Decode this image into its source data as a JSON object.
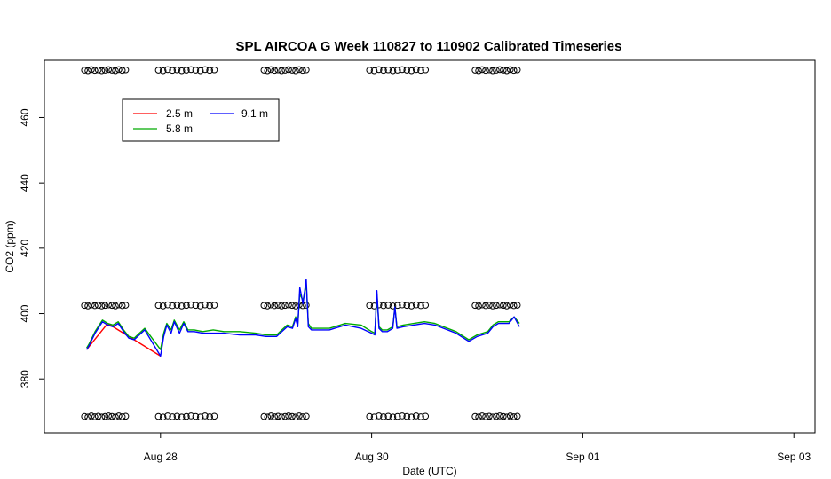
{
  "chart_data": {
    "type": "line",
    "title": "SPL AIRCOA G  Week 110827 to 110902  Calibrated Timeseries",
    "xlabel": "Date (UTC)",
    "ylabel": "CO2 (ppm)",
    "x_unit": "day of Aug 2011 (UTC)",
    "xlim": [
      26.9,
      34.2
    ],
    "ylim": [
      363.5,
      477.5
    ],
    "x_ticks": [
      {
        "x": 28,
        "label": "Aug 28"
      },
      {
        "x": 30,
        "label": "Aug 30"
      },
      {
        "x": 32,
        "label": "Sep 01"
      },
      {
        "x": 34,
        "label": "Sep 03"
      }
    ],
    "y_ticks": [
      380,
      400,
      420,
      440,
      460
    ],
    "grid": false,
    "legend": {
      "placement": "top-left",
      "entries": [
        {
          "name": "2.5 m",
          "color": "#ff0000"
        },
        {
          "name": "5.8 m",
          "color": "#00aa00"
        },
        {
          "name": "9.1 m",
          "color": "#0000ff"
        }
      ]
    },
    "series": [
      {
        "name": "2.5 m",
        "color": "#ff0000",
        "points": [
          [
            27.3,
            389
          ],
          [
            27.5,
            397
          ],
          [
            27.75,
            392
          ],
          [
            28.0,
            387
          ]
        ]
      },
      {
        "name": "5.8 m",
        "color": "#00aa00",
        "points": [
          [
            27.3,
            389.5
          ],
          [
            27.32,
            390.5
          ],
          [
            27.35,
            392.5
          ],
          [
            27.38,
            394.5
          ],
          [
            27.42,
            396.5
          ],
          [
            27.45,
            398
          ],
          [
            27.5,
            397
          ],
          [
            27.55,
            396.5
          ],
          [
            27.6,
            397.5
          ],
          [
            27.65,
            395
          ],
          [
            27.7,
            393
          ],
          [
            27.75,
            392.5
          ],
          [
            27.8,
            394
          ],
          [
            27.85,
            395.5
          ],
          [
            28.0,
            389
          ],
          [
            28.03,
            394
          ],
          [
            28.06,
            397
          ],
          [
            28.1,
            395
          ],
          [
            28.13,
            398
          ],
          [
            28.18,
            395
          ],
          [
            28.22,
            397.5
          ],
          [
            28.26,
            395
          ],
          [
            28.32,
            395
          ],
          [
            28.4,
            394.5
          ],
          [
            28.5,
            395
          ],
          [
            28.6,
            394.5
          ],
          [
            28.75,
            394.5
          ],
          [
            28.9,
            394
          ],
          [
            29.0,
            393.5
          ],
          [
            29.1,
            393.5
          ],
          [
            29.15,
            395
          ],
          [
            29.2,
            396.5
          ],
          [
            29.25,
            396
          ],
          [
            29.28,
            399
          ],
          [
            29.3,
            397
          ],
          [
            29.32,
            406
          ],
          [
            29.35,
            404
          ],
          [
            29.38,
            409
          ],
          [
            29.4,
            397
          ],
          [
            29.43,
            395.5
          ],
          [
            29.5,
            395.5
          ],
          [
            29.6,
            395.5
          ],
          [
            29.65,
            396
          ],
          [
            29.75,
            397
          ],
          [
            29.9,
            396.5
          ],
          [
            30.0,
            394.5
          ],
          [
            30.03,
            394
          ],
          [
            30.05,
            406
          ],
          [
            30.07,
            396
          ],
          [
            30.1,
            395
          ],
          [
            30.15,
            395
          ],
          [
            30.2,
            396
          ],
          [
            30.22,
            402
          ],
          [
            30.24,
            396
          ],
          [
            30.3,
            396.5
          ],
          [
            30.4,
            397
          ],
          [
            30.5,
            397.5
          ],
          [
            30.6,
            397
          ],
          [
            30.8,
            394.5
          ],
          [
            30.92,
            392
          ],
          [
            31.0,
            393.5
          ],
          [
            31.1,
            394.5
          ],
          [
            31.15,
            396.5
          ],
          [
            31.2,
            397.5
          ],
          [
            31.3,
            397.5
          ],
          [
            31.35,
            399
          ],
          [
            31.4,
            397
          ]
        ]
      },
      {
        "name": "9.1 m",
        "color": "#0000ff",
        "points": [
          [
            27.3,
            389
          ],
          [
            27.32,
            390
          ],
          [
            27.35,
            392
          ],
          [
            27.38,
            394
          ],
          [
            27.42,
            396
          ],
          [
            27.45,
            397.5
          ],
          [
            27.5,
            396.5
          ],
          [
            27.55,
            396
          ],
          [
            27.6,
            397
          ],
          [
            27.65,
            394.5
          ],
          [
            27.7,
            392.5
          ],
          [
            27.75,
            392
          ],
          [
            27.8,
            393.5
          ],
          [
            27.85,
            395
          ],
          [
            28.0,
            387
          ],
          [
            28.03,
            393
          ],
          [
            28.06,
            396.5
          ],
          [
            28.1,
            394
          ],
          [
            28.13,
            397.5
          ],
          [
            28.18,
            394
          ],
          [
            28.22,
            397
          ],
          [
            28.26,
            394.5
          ],
          [
            28.32,
            394.5
          ],
          [
            28.4,
            394
          ],
          [
            28.5,
            394
          ],
          [
            28.6,
            394
          ],
          [
            28.75,
            393.5
          ],
          [
            28.9,
            393.5
          ],
          [
            29.0,
            393
          ],
          [
            29.1,
            393
          ],
          [
            29.15,
            394.5
          ],
          [
            29.2,
            396
          ],
          [
            29.25,
            395.5
          ],
          [
            29.28,
            398.5
          ],
          [
            29.3,
            396
          ],
          [
            29.32,
            408
          ],
          [
            29.35,
            403
          ],
          [
            29.38,
            410.5
          ],
          [
            29.4,
            396
          ],
          [
            29.43,
            395
          ],
          [
            29.5,
            395
          ],
          [
            29.6,
            395
          ],
          [
            29.65,
            395.5
          ],
          [
            29.75,
            396.5
          ],
          [
            29.9,
            395.5
          ],
          [
            30.0,
            394
          ],
          [
            30.03,
            393.5
          ],
          [
            30.05,
            407
          ],
          [
            30.07,
            395.5
          ],
          [
            30.1,
            394.5
          ],
          [
            30.15,
            394.5
          ],
          [
            30.2,
            395.5
          ],
          [
            30.22,
            402
          ],
          [
            30.24,
            395.5
          ],
          [
            30.3,
            396
          ],
          [
            30.4,
            396.5
          ],
          [
            30.5,
            397
          ],
          [
            30.6,
            396.5
          ],
          [
            30.8,
            394
          ],
          [
            30.92,
            391.5
          ],
          [
            31.0,
            393
          ],
          [
            31.1,
            394
          ],
          [
            31.15,
            396
          ],
          [
            31.2,
            397
          ],
          [
            31.3,
            397
          ],
          [
            31.35,
            399
          ],
          [
            31.4,
            396
          ]
        ]
      }
    ],
    "calibration_markers": {
      "marker": "open-circle",
      "levels_ppm": [
        474.5,
        402.5,
        368.5
      ],
      "groups": [
        {
          "x_start": 27.28,
          "x_end": 27.67
        },
        {
          "x_start": 27.98,
          "x_end": 28.51
        },
        {
          "x_start": 28.98,
          "x_end": 29.38
        },
        {
          "x_start": 29.98,
          "x_end": 30.51
        },
        {
          "x_start": 30.98,
          "x_end": 31.38
        }
      ]
    }
  }
}
